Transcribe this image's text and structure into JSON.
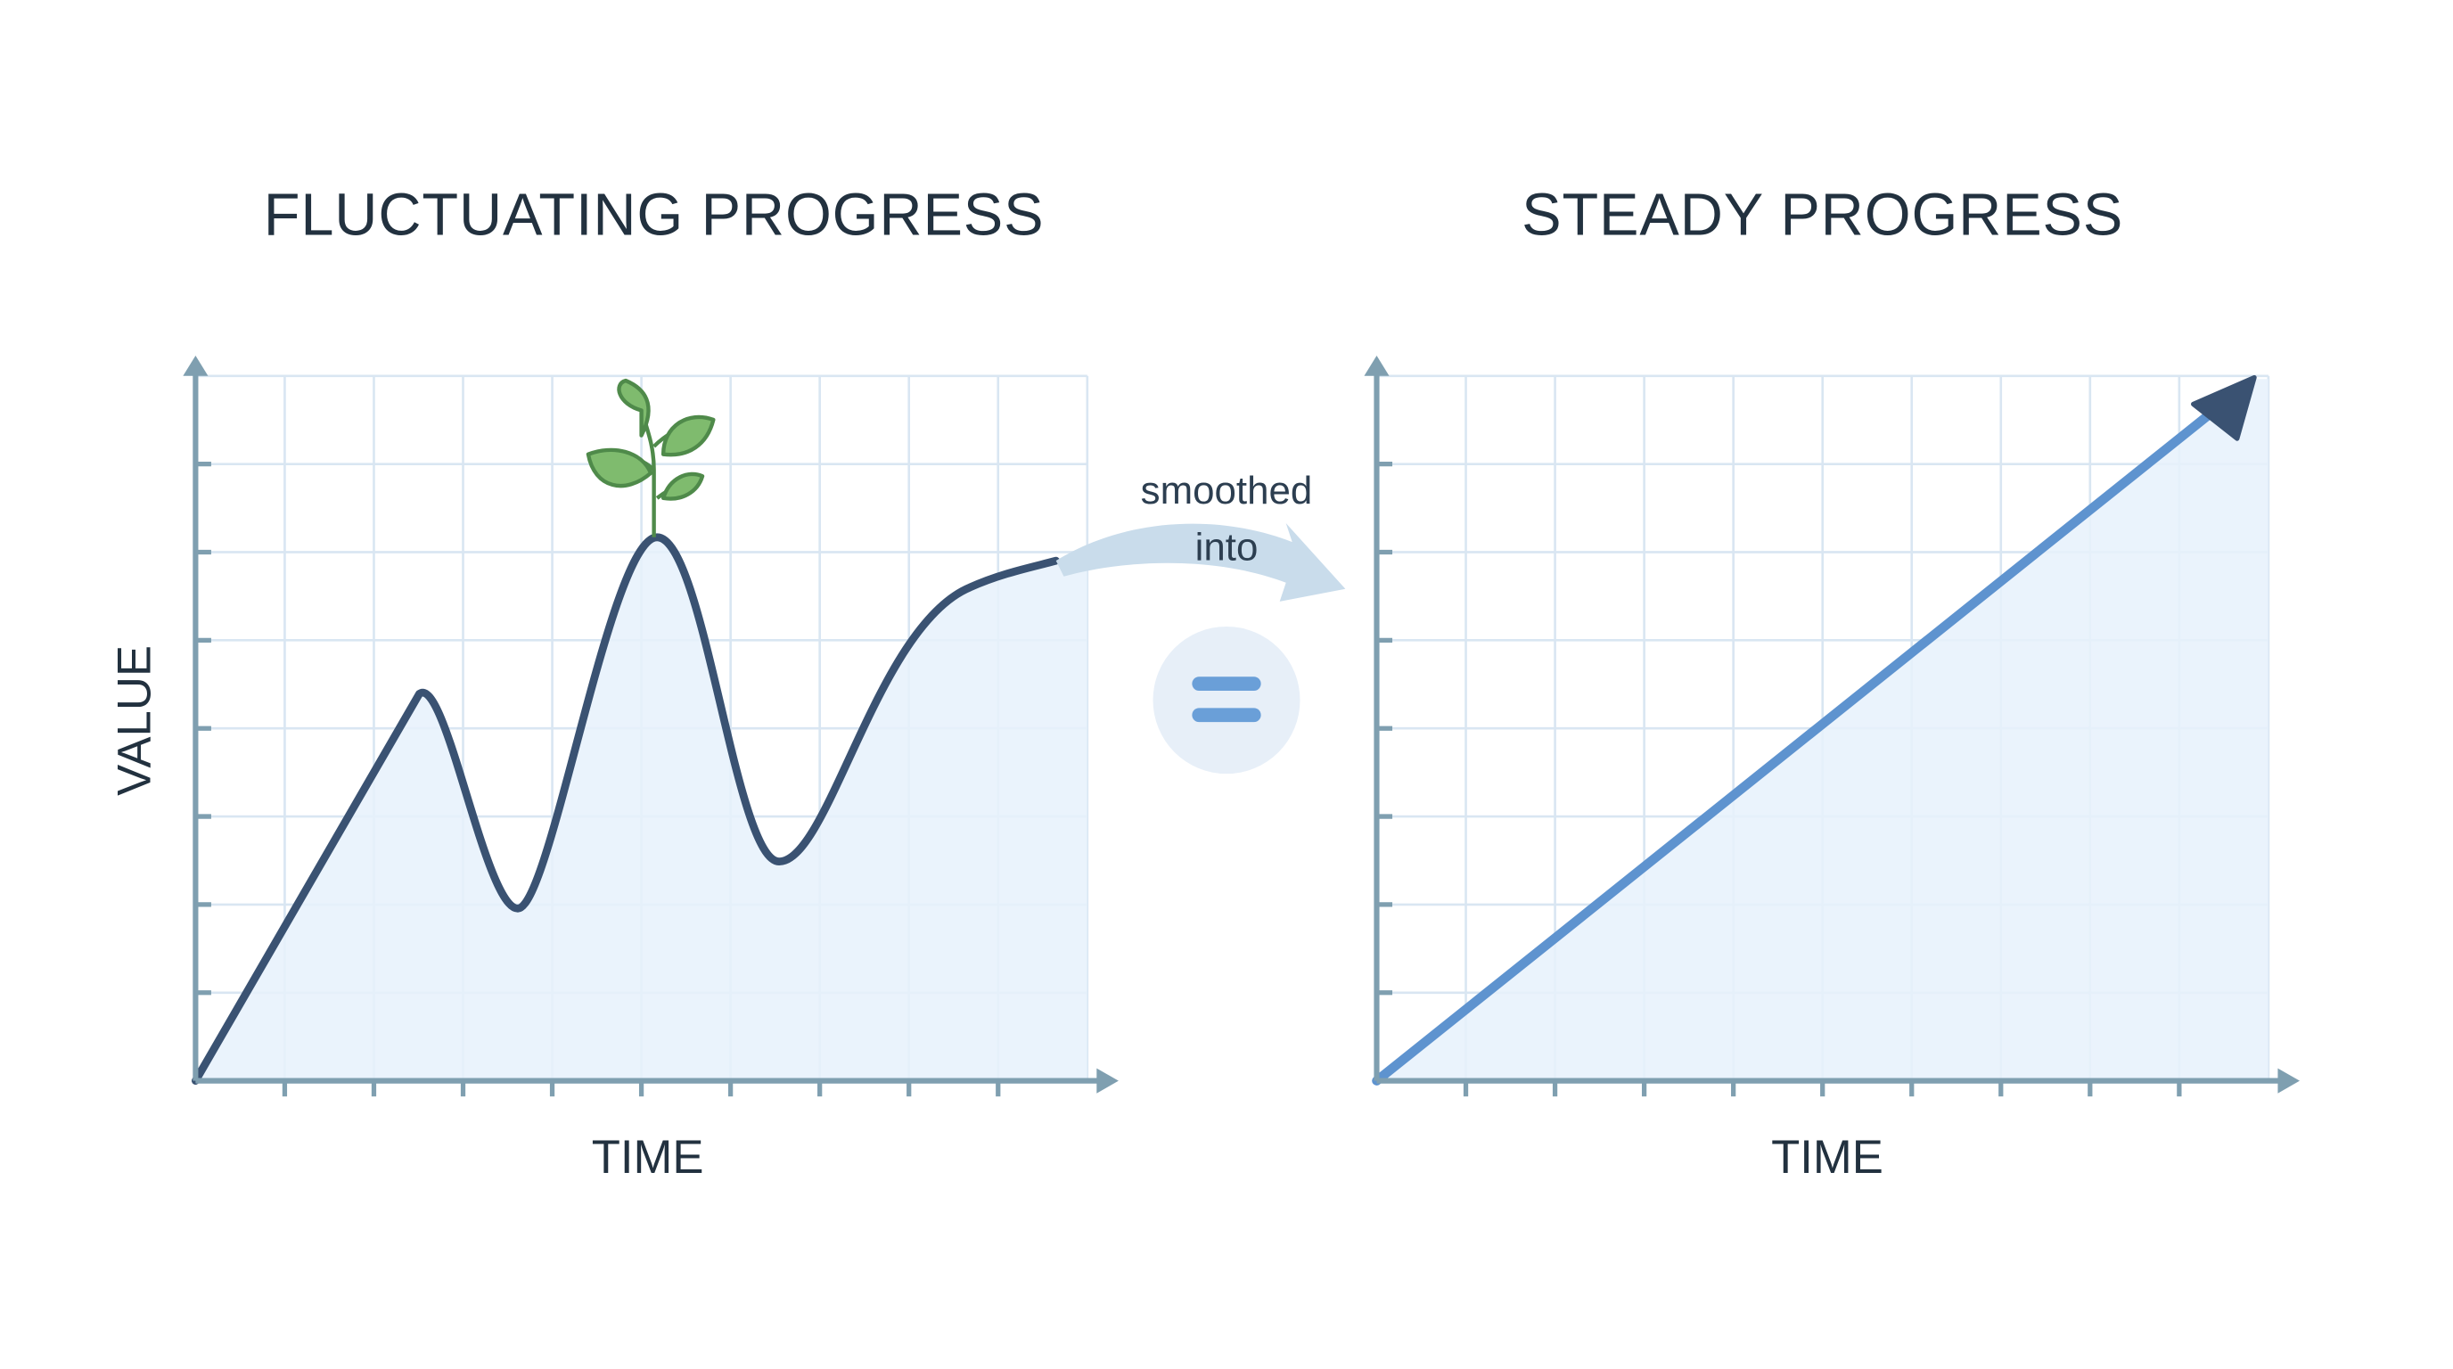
{
  "left_panel": {
    "title": "FLUCTUATING PROGRESS",
    "y_axis_label": "VALUE",
    "x_axis_label": "TIME"
  },
  "connector": {
    "annotation_lines": [
      "smoothed",
      "into"
    ]
  },
  "right_panel": {
    "title": "STEADY PROGRESS",
    "x_axis_label": "TIME"
  }
}
